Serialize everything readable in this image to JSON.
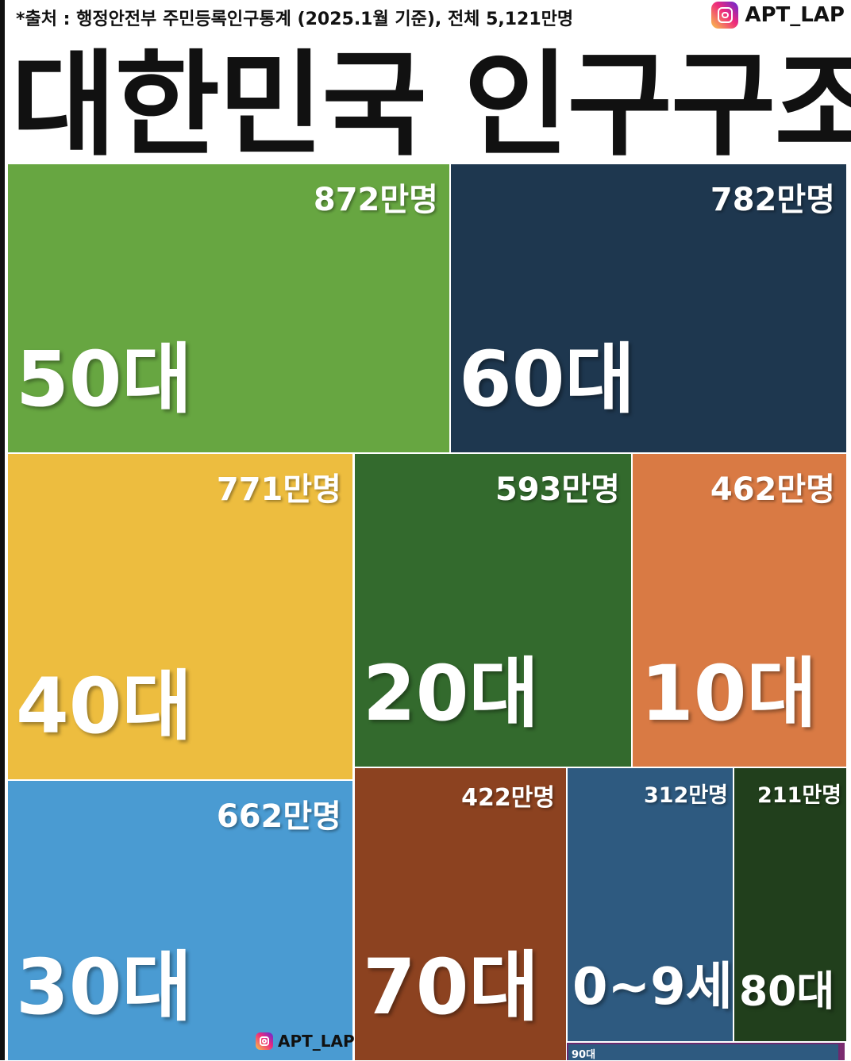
{
  "header": {
    "source": "*출처 : 행정안전부 주민등록인구통계 (2025.1월 기준), 전체 5,121만명",
    "brand": "APT_LAP",
    "title": "대한민국 인구구조"
  },
  "footer": {
    "brand": "APT_LAP"
  },
  "chart_data": {
    "type": "treemap",
    "title": "대한민국 인구구조",
    "unit": "만명",
    "total": 5121,
    "items": [
      {
        "id": "50s",
        "age": "50대",
        "value": 872,
        "label": "872만명",
        "color": "#67a641"
      },
      {
        "id": "60s",
        "age": "60대",
        "value": 782,
        "label": "782만명",
        "color": "#1e374f"
      },
      {
        "id": "40s",
        "age": "40대",
        "value": 771,
        "label": "771만명",
        "color": "#edbd3f"
      },
      {
        "id": "30s",
        "age": "30대",
        "value": 662,
        "label": "662만명",
        "color": "#4a9bd2"
      },
      {
        "id": "20s",
        "age": "20대",
        "value": 593,
        "label": "593만명",
        "color": "#336a2d"
      },
      {
        "id": "10s",
        "age": "10대",
        "value": 462,
        "label": "462만명",
        "color": "#d97a44"
      },
      {
        "id": "70s",
        "age": "70대",
        "value": 422,
        "label": "422만명",
        "color": "#8c4220"
      },
      {
        "id": "0-9",
        "age": "0~9세",
        "value": 312,
        "label": "312만명",
        "color": "#2e5a80"
      },
      {
        "id": "80s",
        "age": "80대",
        "value": 211,
        "label": "211만명",
        "color": "#213f1c"
      }
    ],
    "small_item": {
      "age": "90대"
    }
  }
}
